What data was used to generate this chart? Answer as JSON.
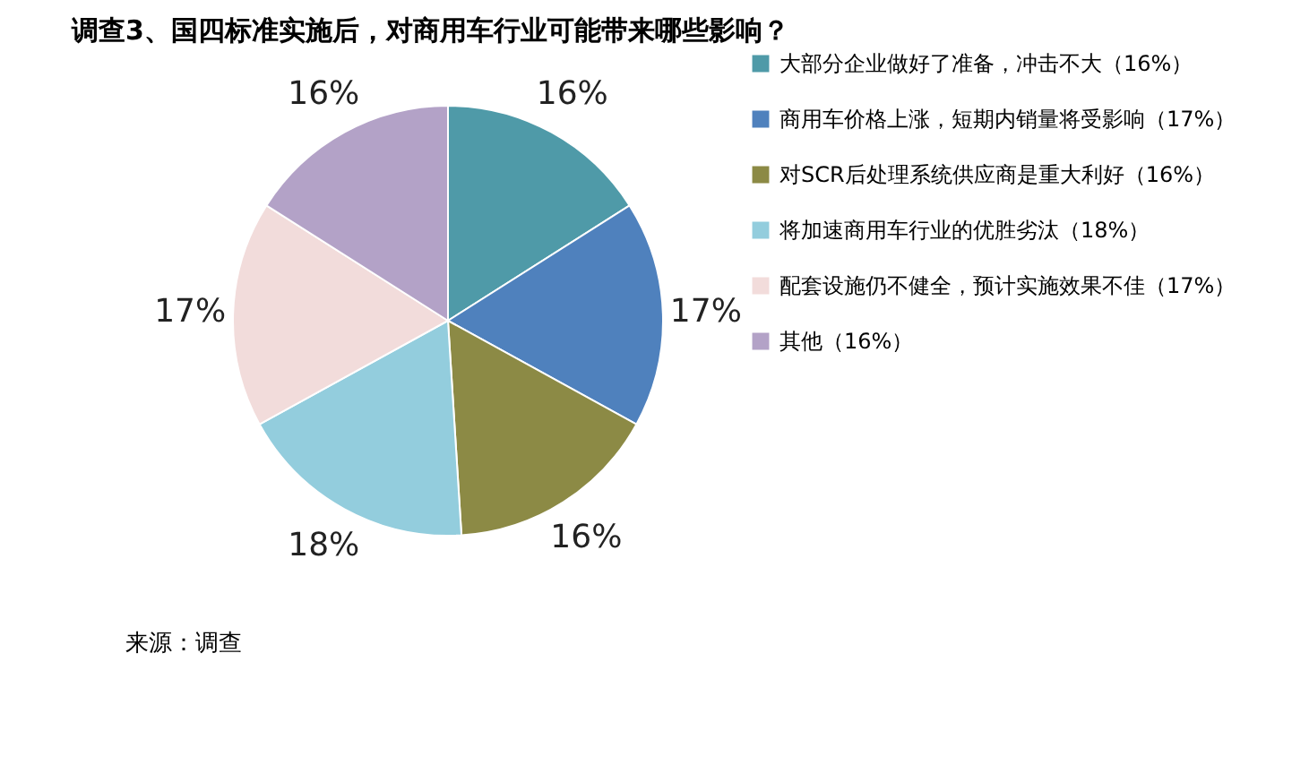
{
  "chart_data": {
    "type": "pie",
    "title": "调查3、国四标准实施后，对商用车行业可能带来哪些影响？",
    "categories": [
      "大部分企业做好了准备，冲击不大（16%）",
      "商用车价格上涨，短期内销量将受影响（17%）",
      "对SCR后处理系统供应商是重大利好（16%）",
      "将加速商用车行业的优胜劣汰（18%）",
      "配套设施仍不健全，预计实施效果不佳（17%）",
      "其他（16%）"
    ],
    "values": [
      16,
      17,
      16,
      18,
      17,
      16
    ],
    "value_labels": [
      "16%",
      "17%",
      "16%",
      "18%",
      "17%",
      "16%"
    ],
    "colors": [
      "#4f9aa8",
      "#4f81bd",
      "#8c8a45",
      "#93cddd",
      "#f2dcdb",
      "#b3a2c7"
    ],
    "legend": "right",
    "annotations": [
      "来源：调查"
    ]
  }
}
